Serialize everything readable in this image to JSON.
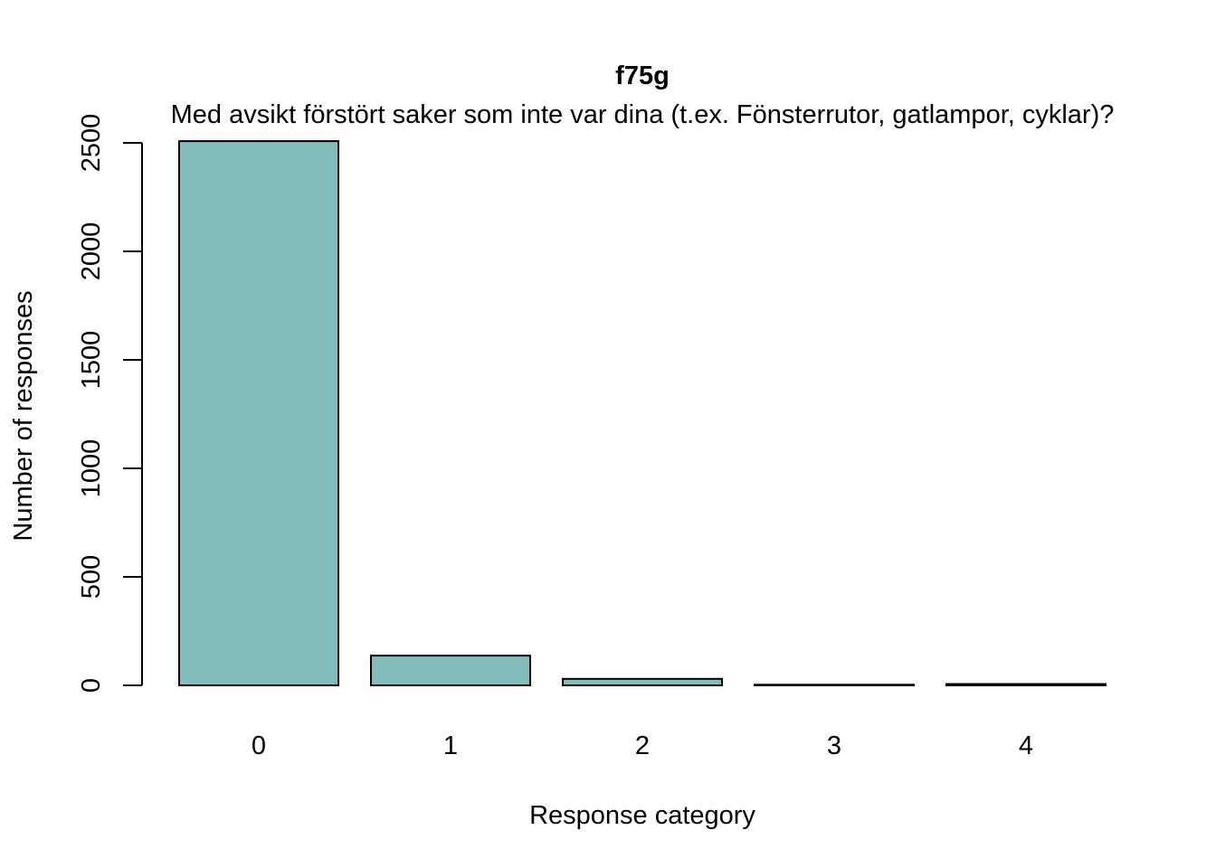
{
  "chart_data": {
    "type": "bar",
    "title": "f75g",
    "subtitle": "Med avsikt förstört saker som inte var dina (t.ex. Fönsterrutor, gatlampor, cyklar)?",
    "xlabel": "Response category",
    "ylabel": "Number of responses",
    "categories": [
      "0",
      "1",
      "2",
      "3",
      "4"
    ],
    "values": [
      2508,
      137,
      30,
      3,
      6
    ],
    "ylim": [
      0,
      2500
    ],
    "yticks": [
      0,
      500,
      1000,
      1500,
      2000,
      2500
    ],
    "bar_color": "#80bdbb",
    "grid": false
  }
}
